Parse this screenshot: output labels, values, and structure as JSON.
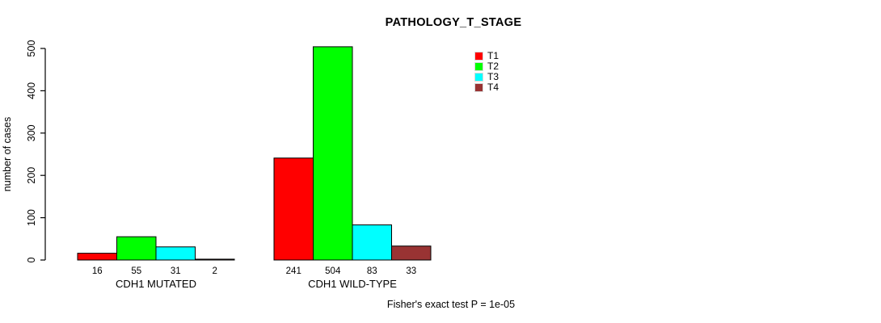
{
  "chart_data": {
    "type": "bar",
    "title": "PATHOLOGY_T_STAGE",
    "ylabel": "number of cases",
    "ylim": [
      0,
      500
    ],
    "yticks": [
      0,
      100,
      200,
      300,
      400,
      500
    ],
    "grid": false,
    "legend_position": "top-right",
    "categories": [
      "CDH1 MUTATED",
      "CDH1 WILD-TYPE"
    ],
    "series": [
      {
        "name": "T1",
        "color": "#FF0000",
        "values": [
          16,
          241
        ]
      },
      {
        "name": "T2",
        "color": "#00FF00",
        "values": [
          55,
          504
        ]
      },
      {
        "name": "T3",
        "color": "#00FFFF",
        "values": [
          31,
          83
        ]
      },
      {
        "name": "T4",
        "color": "#993333",
        "values": [
          2,
          33
        ]
      }
    ],
    "annotation": "Fisher's exact test P = 1e-05",
    "background": "#ffffff",
    "axis_color": "#000000"
  }
}
